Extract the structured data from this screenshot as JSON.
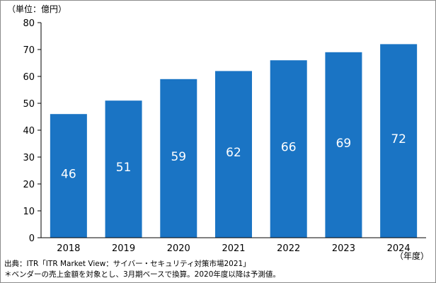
{
  "chart_data": {
    "type": "bar",
    "unit_label": "（単位：億円）",
    "x_unit_label": "（年度）",
    "categories": [
      "2018",
      "2019",
      "2020",
      "2021",
      "2022",
      "2023",
      "2024"
    ],
    "values": [
      46,
      51,
      59,
      62,
      66,
      69,
      72
    ],
    "value_labels": [
      "46",
      "51",
      "59",
      "62",
      "66",
      "69",
      "72"
    ],
    "yticks": [
      "0",
      "10",
      "20",
      "30",
      "40",
      "50",
      "60",
      "70",
      "80"
    ],
    "ylim": [
      0,
      80
    ],
    "grid": false,
    "bar_color": "#1a74c4",
    "data_label_color": "#ffffff"
  },
  "footnotes": {
    "source": "出典：ITR「ITR Market View：サイバー・セキュリティ対策市場2021」",
    "note": "＊ベンダーの売上金額を対象とし、3月期ベースで換算。2020年度以降は予測値。"
  }
}
